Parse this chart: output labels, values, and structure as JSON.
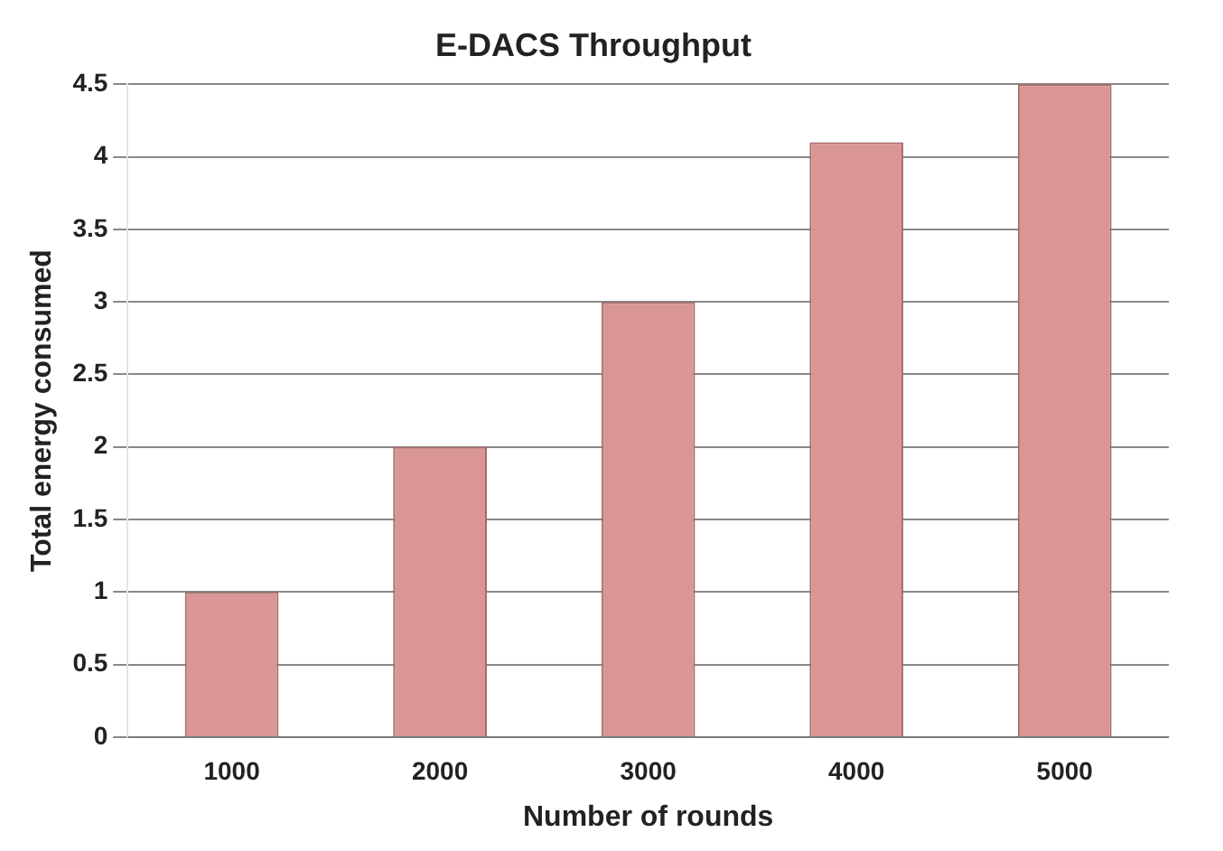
{
  "chart_data": {
    "type": "bar",
    "title": "E-DACS Throughput",
    "xlabel": "Number of rounds",
    "ylabel": "Total energy consumed",
    "categories": [
      "1000",
      "2000",
      "3000",
      "4000",
      "5000"
    ],
    "values": [
      1,
      2,
      3,
      4.1,
      4.5
    ],
    "color": "#d99694",
    "ylim": [
      0,
      4.5
    ],
    "yticks": [
      0,
      0.5,
      1,
      1.5,
      2,
      2.5,
      3,
      3.5,
      4,
      4.5
    ],
    "grid": "y",
    "legend": false
  }
}
